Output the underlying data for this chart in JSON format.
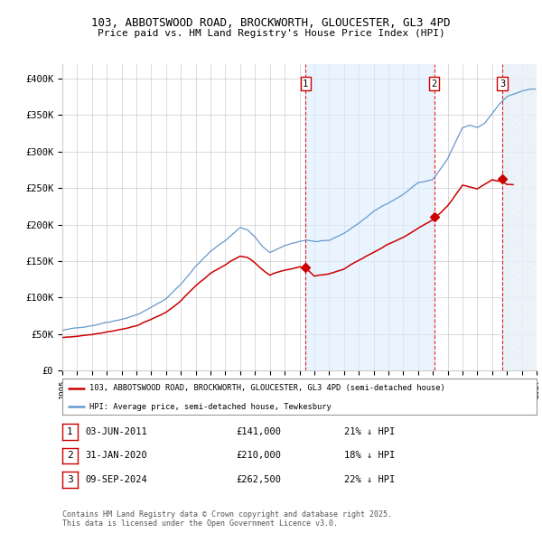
{
  "title_line1": "103, ABBOTSWOOD ROAD, BROCKWORTH, GLOUCESTER, GL3 4PD",
  "title_line2": "Price paid vs. HM Land Registry's House Price Index (HPI)",
  "xlim_start": 1995,
  "xlim_end": 2027,
  "ylim_min": 0,
  "ylim_max": 420000,
  "yticks": [
    0,
    50000,
    100000,
    150000,
    200000,
    250000,
    300000,
    350000,
    400000
  ],
  "ytick_labels": [
    "£0",
    "£50K",
    "£100K",
    "£150K",
    "£200K",
    "£250K",
    "£300K",
    "£350K",
    "£400K"
  ],
  "sale_prices": [
    141000,
    210000,
    262500
  ],
  "sale_labels": [
    "1",
    "2",
    "3"
  ],
  "sale_date_strs": [
    "03-JUN-2011",
    "31-JAN-2020",
    "09-SEP-2024"
  ],
  "sale_price_strs": [
    "£141,000",
    "£210,000",
    "£262,500"
  ],
  "sale_pct_hpi": [
    "21%",
    "18%",
    "22%"
  ],
  "red_line_color": "#cc0000",
  "blue_line_color": "#6699cc",
  "hpi_fill_color": "#ddeeff",
  "vline_color": "#cc0000",
  "background_color": "#ffffff",
  "grid_color": "#cccccc",
  "legend_label_red": "103, ABBOTSWOOD ROAD, BROCKWORTH, GLOUCESTER, GL3 4PD (semi-detached house)",
  "legend_label_blue": "HPI: Average price, semi-detached house, Tewkesbury",
  "footer_text": "Contains HM Land Registry data © Crown copyright and database right 2025.\nThis data is licensed under the Open Government Licence v3.0.",
  "shade_start": 2011.42,
  "shade_end": 2020.08,
  "hatch_start": 2024.69,
  "hatch_end": 2027
}
